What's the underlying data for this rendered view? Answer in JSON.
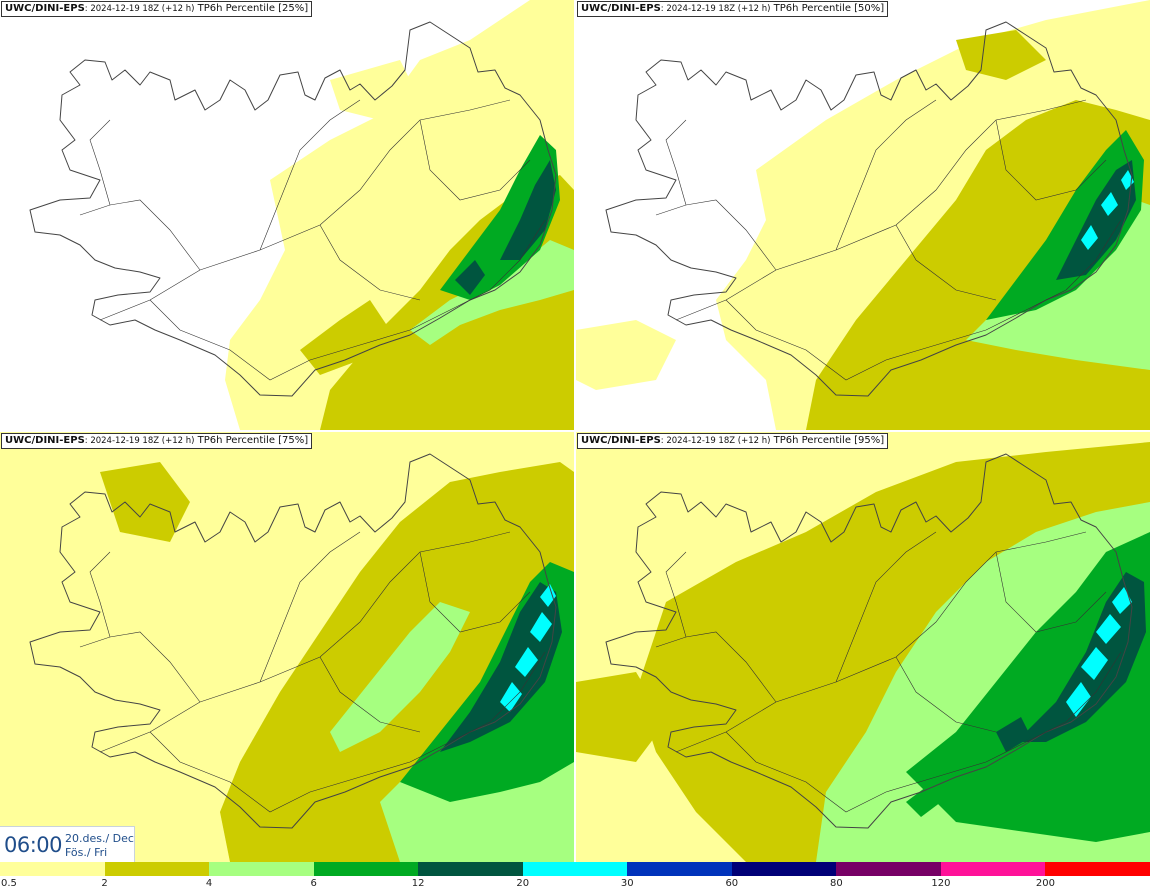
{
  "panels": [
    {
      "model": "UWC/DINI-EPS",
      "run": ": 2024-12-19 18Z (+12 h)",
      "field": " TP6h Percentile [25%]",
      "percentile": 25
    },
    {
      "model": "UWC/DINI-EPS",
      "run": ": 2024-12-19 18Z (+12 h)",
      "field": " TP6h Percentile [50%]",
      "percentile": 50
    },
    {
      "model": "UWC/DINI-EPS",
      "run": ": 2024-12-19 18Z (+12 h)",
      "field": " TP6h Percentile [75%]",
      "percentile": 75
    },
    {
      "model": "UWC/DINI-EPS",
      "run": ": 2024-12-19 18Z (+12 h)",
      "field": " TP6h Percentile [95%]",
      "percentile": 95
    }
  ],
  "valid": {
    "time": "06:00",
    "date_line1": "20.des./ Dec",
    "date_line2": "Fös./ Fri"
  },
  "legend": {
    "labels": [
      "0.5",
      "2",
      "4",
      "6",
      "12",
      "20",
      "30",
      "60",
      "80",
      "120",
      "200"
    ],
    "colors": [
      "#ffff9a",
      "#cccc00",
      "#a6ff80",
      "#00aa22",
      "#00553f",
      "#00ffff",
      "#0033bb",
      "#000077",
      "#770066",
      "#ff1199",
      "#ff0000"
    ]
  },
  "colors": {
    "land_outline": "#444444",
    "roads": "#333333",
    "timebox_text": "#1f4d8a"
  }
}
